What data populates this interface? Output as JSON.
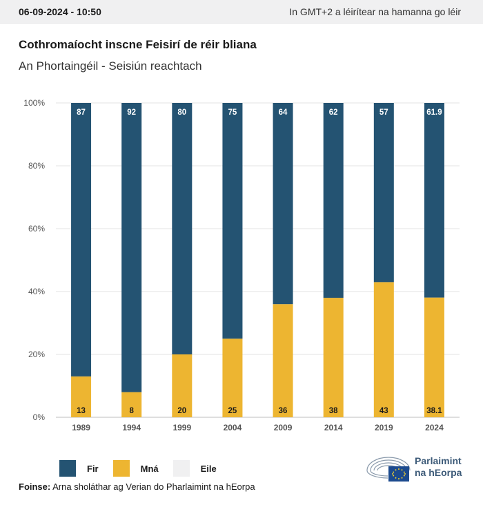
{
  "header": {
    "timestamp": "06-09-2024 - 10:50",
    "timezone_note": "In GMT+2 a léirítear na hamanna go léir"
  },
  "title": "Cothromaíocht inscne Feisirí de réir bliana",
  "subtitle": "An Phortaingéil - Seisiún reachtach",
  "colors": {
    "fir": "#245372",
    "mna": "#edb531",
    "eile": "#f0f0f1",
    "grid": "#e3e3e3",
    "logo": "#3c5a78"
  },
  "chart_data": {
    "type": "bar",
    "stacked": true,
    "categories": [
      "1989",
      "1994",
      "1999",
      "2004",
      "2009",
      "2014",
      "2019",
      "2024"
    ],
    "series": [
      {
        "name": "Mná",
        "values": [
          13,
          8,
          20,
          25,
          36,
          38,
          43,
          38.1
        ],
        "labels": [
          "13",
          "8",
          "20",
          "25",
          "36",
          "38",
          "43",
          "38.1"
        ]
      },
      {
        "name": "Fir",
        "values": [
          87,
          92,
          80,
          75,
          64,
          62,
          57,
          61.9
        ],
        "labels": [
          "87",
          "92",
          "80",
          "75",
          "64",
          "62",
          "57",
          "61.9"
        ]
      }
    ],
    "yticks": [
      "0%",
      "20%",
      "40%",
      "60%",
      "80%",
      "100%"
    ],
    "ylim": [
      0,
      100
    ],
    "grid": true
  },
  "legend": [
    {
      "label": "Fir"
    },
    {
      "label": "Mná"
    },
    {
      "label": "Eile"
    }
  ],
  "source": {
    "label": "Foinse:",
    "text": "Arna sholáthar ag Verian do Pharlaimint na hEorpa"
  },
  "logo": {
    "line1": "Parlaimint",
    "line2": "na hEorpa"
  }
}
